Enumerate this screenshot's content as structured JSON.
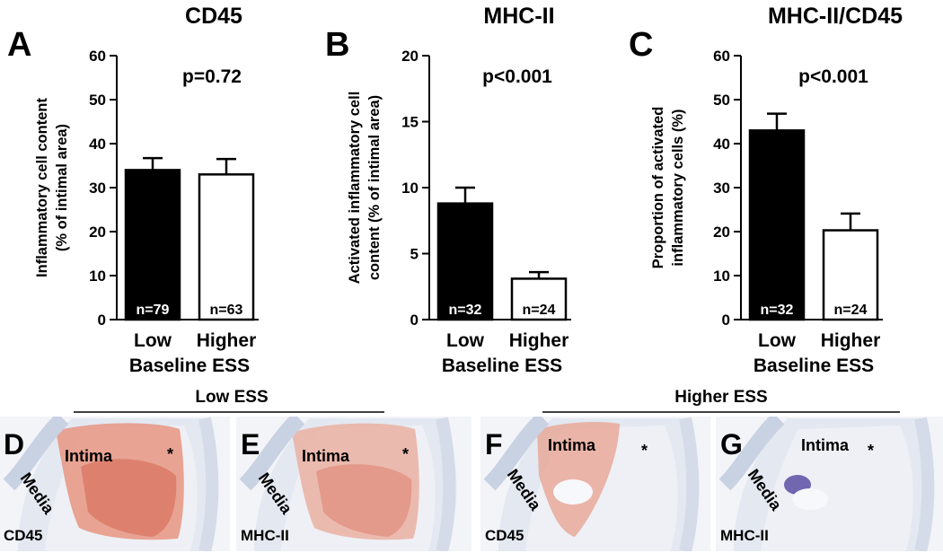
{
  "chart_data": [
    {
      "type": "bar",
      "panel": "A",
      "title": "CD45",
      "annotation": "p=0.72",
      "ylabel_lines": [
        "Inflammatory cell content",
        "(% of intimal area)"
      ],
      "xlabel": "Baseline ESS",
      "categories": [
        "Low",
        "Higher"
      ],
      "values": [
        34,
        33
      ],
      "errors": [
        2.7,
        3.5
      ],
      "n_labels": [
        "n=79",
        "n=63"
      ],
      "bar_colors": [
        "#000000",
        "#ffffff"
      ],
      "ylim": [
        0,
        60
      ],
      "yticks": [
        0,
        10,
        20,
        30,
        40,
        50,
        60
      ]
    },
    {
      "type": "bar",
      "panel": "B",
      "title": "MHC-II",
      "annotation": "p<0.001",
      "ylabel_lines": [
        "Activated inflammatory cell",
        "content (% of intimal area)"
      ],
      "xlabel": "Baseline ESS",
      "categories": [
        "Low",
        "Higher"
      ],
      "values": [
        8.8,
        3.1
      ],
      "errors": [
        1.2,
        0.5
      ],
      "n_labels": [
        "n=32",
        "n=24"
      ],
      "bar_colors": [
        "#000000",
        "#ffffff"
      ],
      "ylim": [
        0,
        20
      ],
      "yticks": [
        0,
        5,
        10,
        15,
        20
      ]
    },
    {
      "type": "bar",
      "panel": "C",
      "title": "MHC-II/CD45",
      "annotation": "p<0.001",
      "ylabel_lines": [
        "Proportion of activated",
        "inflammatory cells (%)"
      ],
      "xlabel": "Baseline ESS",
      "categories": [
        "Low",
        "Higher"
      ],
      "values": [
        43,
        20.3
      ],
      "errors": [
        3.8,
        3.8
      ],
      "n_labels": [
        "n=32",
        "n=24"
      ],
      "bar_colors": [
        "#000000",
        "#ffffff"
      ],
      "ylim": [
        0,
        60
      ],
      "yticks": [
        0,
        10,
        20,
        30,
        40,
        50,
        60
      ]
    }
  ],
  "micrographs": {
    "groups": [
      "Low ESS",
      "Higher ESS"
    ],
    "panels": [
      {
        "letter": "D",
        "stain": "CD45",
        "intima": "Intima",
        "media": "Media",
        "asterisk": "*"
      },
      {
        "letter": "E",
        "stain": "MHC-II",
        "intima": "Intima",
        "media": "Media",
        "asterisk": "*"
      },
      {
        "letter": "F",
        "stain": "CD45",
        "intima": "Intima",
        "media": "Media",
        "asterisk": "*"
      },
      {
        "letter": "G",
        "stain": "MHC-II",
        "intima": "Intima",
        "media": "Media",
        "asterisk": "*"
      }
    ],
    "colors": {
      "tissue": "#e9edf4",
      "red_stain": "#e79a88",
      "red_dense": "#d97561",
      "blue_stain": "#5b4fa3"
    }
  }
}
